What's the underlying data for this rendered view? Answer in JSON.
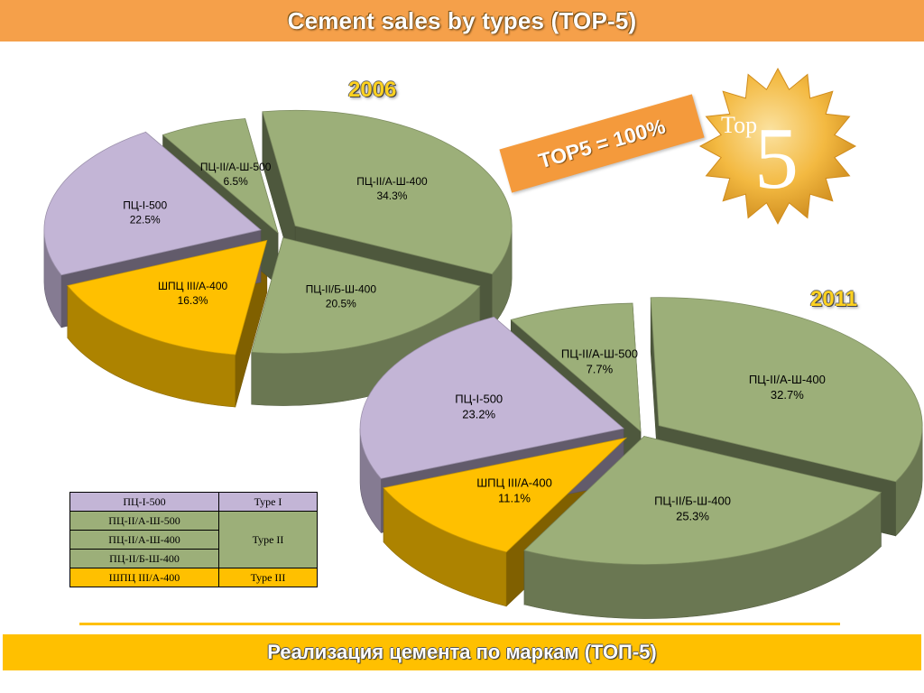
{
  "header": {
    "title": "Cement sales by types (TOP-5)"
  },
  "badge": {
    "text": "TOP5 = 100%"
  },
  "logo": {
    "small": "Top",
    "big": "5"
  },
  "colors": {
    "type_i": "#c3b5d6",
    "type_ii": "#9caf79",
    "type_iii": "#ffc000",
    "banner": "#f5a04a"
  },
  "chart_data": [
    {
      "type": "pie",
      "title": "2006",
      "slices": [
        {
          "label": "ПЦ-I-500",
          "value": 22.5,
          "pct": "22.5%",
          "group": "type_i"
        },
        {
          "label": "ПЦ-II/А-Ш-500",
          "value": 6.5,
          "pct": "6.5%",
          "group": "type_ii"
        },
        {
          "label": "ПЦ-II/А-Ш-400",
          "value": 34.3,
          "pct": "34.3%",
          "group": "type_ii"
        },
        {
          "label": "ПЦ-II/Б-Ш-400",
          "value": 20.5,
          "pct": "20.5%",
          "group": "type_ii"
        },
        {
          "label": "ШПЦ III/А-400",
          "value": 16.3,
          "pct": "16.3%",
          "group": "type_iii"
        }
      ]
    },
    {
      "type": "pie",
      "title": "2011",
      "slices": [
        {
          "label": "ПЦ-I-500",
          "value": 23.2,
          "pct": "23.2%",
          "group": "type_i"
        },
        {
          "label": "ПЦ-II/А-Ш-500",
          "value": 7.7,
          "pct": "7.7%",
          "group": "type_ii"
        },
        {
          "label": "ПЦ-II/А-Ш-400",
          "value": 32.7,
          "pct": "32.7%",
          "group": "type_ii"
        },
        {
          "label": "ПЦ-II/Б-Ш-400",
          "value": 25.3,
          "pct": "25.3%",
          "group": "type_ii"
        },
        {
          "label": "ШПЦ III/А-400",
          "value": 11.1,
          "pct": "11.1%",
          "group": "type_iii"
        }
      ]
    }
  ],
  "legend": {
    "rows": [
      {
        "grade": "ПЦ-I-500",
        "group": "type_i"
      },
      {
        "grade": "ПЦ-II/А-Ш-500",
        "group": "type_ii"
      },
      {
        "grade": "ПЦ-II/А-Ш-400",
        "group": "type_ii"
      },
      {
        "grade": "ПЦ-II/Б-Ш-400",
        "group": "type_ii"
      },
      {
        "grade": "ШПЦ III/А-400",
        "group": "type_iii"
      }
    ],
    "types": {
      "type_i": "Type I",
      "type_ii": "Type II",
      "type_iii": "Type III"
    }
  },
  "footer": {
    "title": "Реализация цемента по маркам (ТОП-5)"
  }
}
